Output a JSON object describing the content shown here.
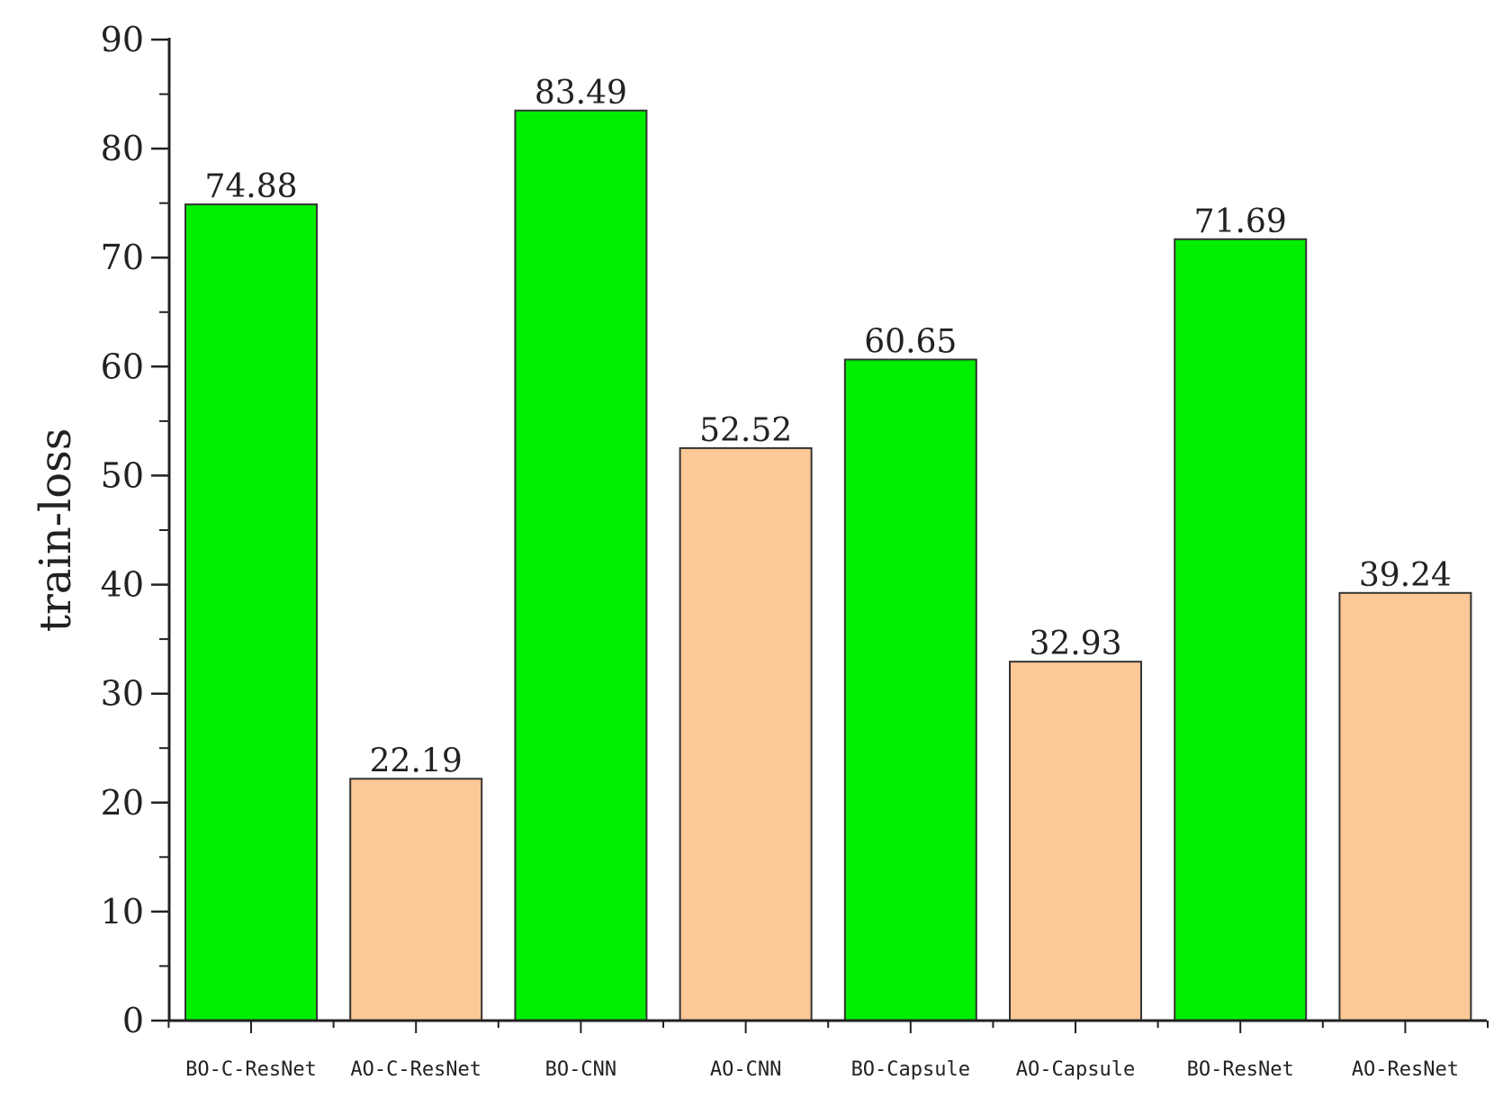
{
  "chart_data": {
    "type": "bar",
    "ylabel": "train-loss",
    "xlabel": "",
    "ylim": [
      0,
      90
    ],
    "yticks": [
      0,
      10,
      20,
      30,
      40,
      50,
      60,
      70,
      80,
      90
    ],
    "y_minor_step": 5,
    "grid": false,
    "legend": "none",
    "categories": [
      "BO-C-ResNet",
      "AO-C-ResNet",
      "BO-CNN",
      "AO-CNN",
      "BO-Capsule",
      "AO-Capsule",
      "BO-ResNet",
      "AO-ResNet"
    ],
    "values": [
      74.88,
      22.19,
      83.49,
      52.52,
      60.65,
      32.93,
      71.69,
      39.24
    ],
    "value_labels": [
      "74.88",
      "22.19",
      "83.49",
      "52.52",
      "60.65",
      "32.93",
      "71.69",
      "39.24"
    ],
    "bar_colors": [
      "#00ee00",
      "#fcc896",
      "#00ee00",
      "#fcc896",
      "#00ee00",
      "#fcc896",
      "#00ee00",
      "#fcc896"
    ],
    "bar_edge_color": "#333333",
    "axis_color": "#222222"
  }
}
